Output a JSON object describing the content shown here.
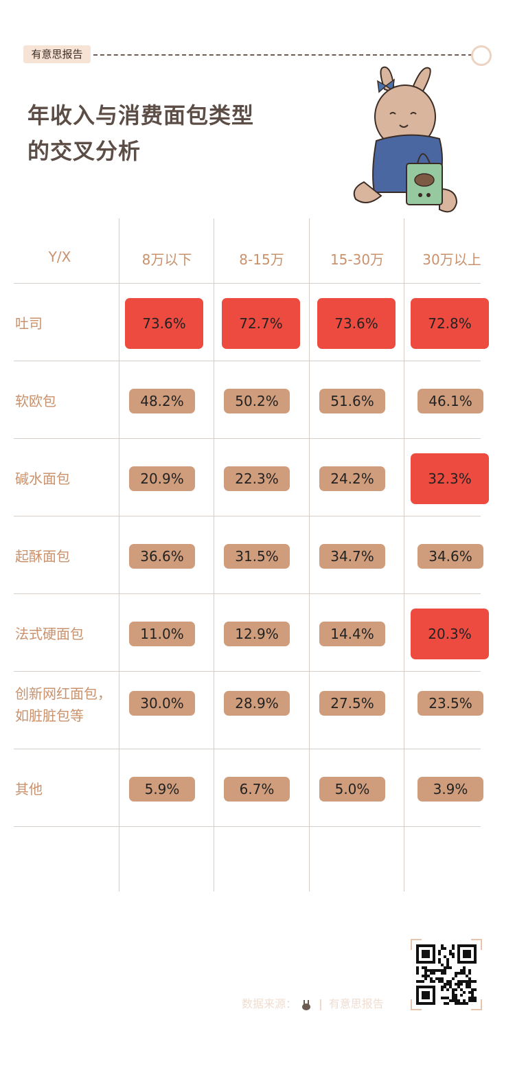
{
  "header": {
    "brand_tag": "有意思报告",
    "title_line1": "年收入与消费面包类型",
    "title_line2": "的交叉分析"
  },
  "chart_data": {
    "type": "table",
    "corner_label": "Y/X",
    "columns": [
      "8万以下",
      "8-15万",
      "15-30万",
      "30万以上"
    ],
    "rows": [
      {
        "label": [
          "吐司"
        ],
        "values": [
          "73.6%",
          "72.7%",
          "73.6%",
          "72.8%"
        ],
        "highlight": [
          true,
          true,
          true,
          true
        ]
      },
      {
        "label": [
          "软欧包"
        ],
        "values": [
          "48.2%",
          "50.2%",
          "51.6%",
          "46.1%"
        ],
        "highlight": [
          false,
          false,
          false,
          false
        ]
      },
      {
        "label": [
          "碱水面包"
        ],
        "values": [
          "20.9%",
          "22.3%",
          "24.2%",
          "32.3%"
        ],
        "highlight": [
          false,
          false,
          false,
          true
        ]
      },
      {
        "label": [
          "起酥面包"
        ],
        "values": [
          "36.6%",
          "31.5%",
          "34.7%",
          "34.6%"
        ],
        "highlight": [
          false,
          false,
          false,
          false
        ]
      },
      {
        "label": [
          "法式硬面包"
        ],
        "values": [
          "11.0%",
          "12.9%",
          "14.4%",
          "20.3%"
        ],
        "highlight": [
          false,
          false,
          false,
          true
        ]
      },
      {
        "label": [
          "创新网红面包，",
          "如脏脏包等"
        ],
        "values": [
          "30.0%",
          "28.9%",
          "27.5%",
          "23.5%"
        ],
        "highlight": [
          false,
          false,
          false,
          false
        ]
      },
      {
        "label": [
          "其他"
        ],
        "values": [
          "5.9%",
          "6.7%",
          "5.0%",
          "3.9%"
        ],
        "highlight": [
          false,
          false,
          false,
          false
        ]
      }
    ],
    "colors": {
      "highlight": "#ee4b40",
      "normal": "#cf9d7c",
      "label": "#c9916c"
    }
  },
  "footer": {
    "source_label": "数据来源：",
    "separator": "|",
    "brand": "有意思报告"
  }
}
